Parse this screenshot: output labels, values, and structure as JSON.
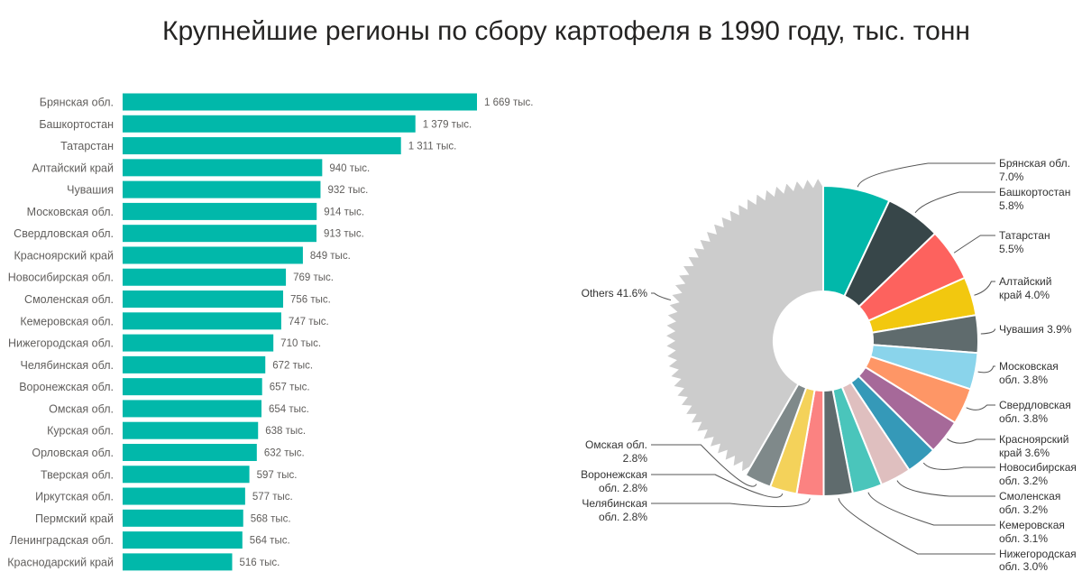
{
  "title": "Крупнейшие регионы по сбору картофеля в 1990 году, тыс. тонн",
  "chart_data": [
    {
      "type": "bar",
      "orientation": "horizontal",
      "color": "#01B8AA",
      "categories": [
        "Брянская обл.",
        "Башкортостан",
        "Татарстан",
        "Алтайский край",
        "Чувашия",
        "Московская обл.",
        "Свердловская обл.",
        "Красноярский край",
        "Новосибирская обл.",
        "Смоленская обл.",
        "Кемеровская обл.",
        "Нижегородская обл.",
        "Челябинская обл.",
        "Воронежская обл.",
        "Омская обл.",
        "Курская обл.",
        "Орловская обл.",
        "Тверская обл.",
        "Иркутская обл.",
        "Пермский край",
        "Ленинградская обл.",
        "Краснодарский край"
      ],
      "values": [
        1669,
        1379,
        1311,
        940,
        932,
        914,
        913,
        849,
        769,
        756,
        747,
        710,
        672,
        657,
        654,
        638,
        632,
        597,
        577,
        568,
        564,
        516
      ],
      "data_labels": [
        "1 669 тыс.",
        "1 379 тыс.",
        "1 311 тыс.",
        "940 тыс.",
        "932 тыс.",
        "914 тыс.",
        "913 тыс.",
        "849 тыс.",
        "769 тыс.",
        "756 тыс.",
        "747 тыс.",
        "710 тыс.",
        "672 тыс.",
        "657 тыс.",
        "654 тыс.",
        "638 тыс.",
        "632 тыс.",
        "597 тыс.",
        "577 тыс.",
        "568 тыс.",
        "564 тыс.",
        "516 тыс."
      ]
    },
    {
      "type": "pie",
      "donut": true,
      "slices": [
        {
          "label": [
            "Брянская обл.",
            "7.0%"
          ],
          "value": 7.0,
          "color": "#01B8AA",
          "side": "right"
        },
        {
          "label": [
            "Башкортостан",
            "5.8%"
          ],
          "value": 5.8,
          "color": "#374649",
          "side": "right"
        },
        {
          "label": [
            "Татарстан",
            "5.5%"
          ],
          "value": 5.5,
          "color": "#FD625E",
          "side": "right"
        },
        {
          "label": [
            "Алтайский",
            "край 4.0%"
          ],
          "value": 4.0,
          "color": "#F2C80F",
          "side": "right"
        },
        {
          "label": [
            "Чувашия 3.9%"
          ],
          "value": 3.9,
          "color": "#5F6B6D",
          "side": "right"
        },
        {
          "label": [
            "Московская",
            "обл. 3.8%"
          ],
          "value": 3.8,
          "color": "#8AD4EB",
          "side": "right"
        },
        {
          "label": [
            "Свердловская",
            "обл. 3.8%"
          ],
          "value": 3.8,
          "color": "#FE9666",
          "side": "right"
        },
        {
          "label": [
            "Красноярский",
            "край 3.6%"
          ],
          "value": 3.6,
          "color": "#A66999",
          "side": "right"
        },
        {
          "label": [
            "Новосибирская",
            "обл. 3.2%"
          ],
          "value": 3.2,
          "color": "#3599B8",
          "side": "right"
        },
        {
          "label": [
            "Смоленская",
            "обл. 3.2%"
          ],
          "value": 3.2,
          "color": "#DFBFBF",
          "side": "right"
        },
        {
          "label": [
            "Кемеровская",
            "обл. 3.1%"
          ],
          "value": 3.1,
          "color": "#4AC5BB",
          "side": "right"
        },
        {
          "label": [
            "Нижегородская",
            "обл. 3.0%"
          ],
          "value": 3.0,
          "color": "#5F6B6D",
          "side": "right"
        },
        {
          "label": [
            "Челябинская",
            "обл. 2.8%"
          ],
          "value": 2.8,
          "color": "#FB8281",
          "side": "left"
        },
        {
          "label": [
            "Воронежская",
            "обл. 2.8%"
          ],
          "value": 2.8,
          "color": "#F4D25A",
          "side": "left"
        },
        {
          "label": [
            "Омская обл.",
            "2.8%"
          ],
          "value": 2.8,
          "color": "#7F898A",
          "side": "left"
        },
        {
          "label": [
            "Others 41.6%"
          ],
          "value": 41.6,
          "color": "#CCCCCC",
          "side": "left"
        }
      ]
    }
  ]
}
